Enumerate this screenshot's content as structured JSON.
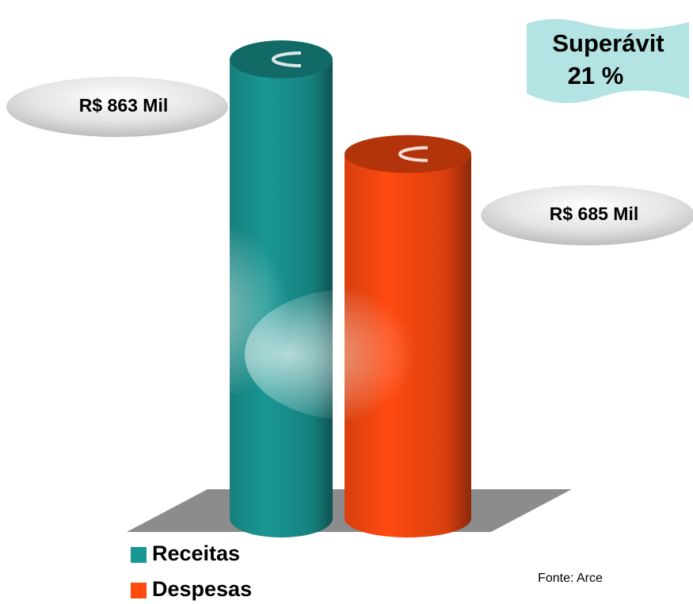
{
  "chart_data": {
    "type": "bar",
    "categories": [
      null
    ],
    "series": [
      {
        "name": "Receitas",
        "color": "#1a9793",
        "values": [
          863
        ],
        "value_labels": [
          "R$ 863 Mil"
        ]
      },
      {
        "name": "Despesas",
        "color": "#ff4a10",
        "values": [
          685
        ],
        "value_labels": [
          "R$ 685 Mil"
        ]
      }
    ],
    "annotations": [
      "Superávit",
      "21 %"
    ],
    "source": "Fonte: Arce"
  }
}
